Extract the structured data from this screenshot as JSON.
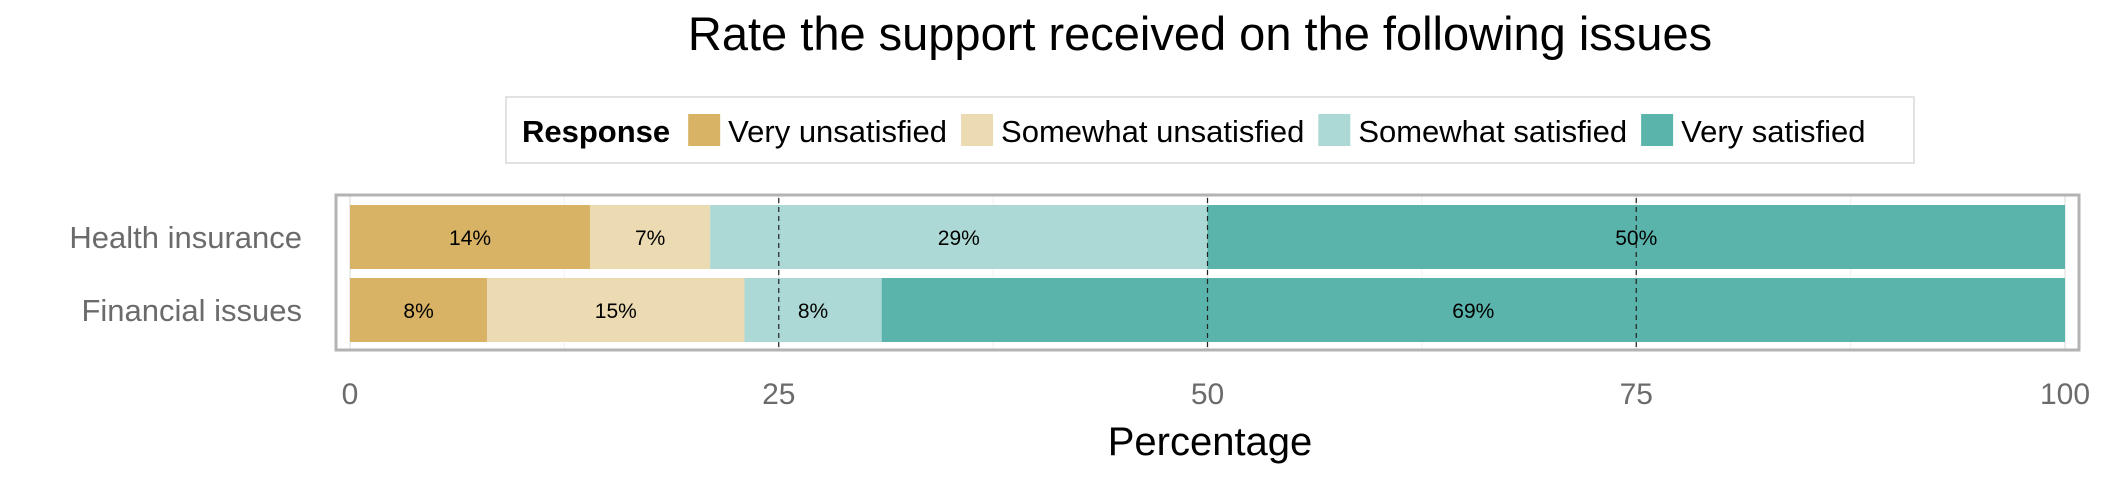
{
  "chart_data": {
    "type": "bar",
    "orientation": "horizontal",
    "stacked": true,
    "title": "Rate the support received on the following issues",
    "xlabel": "Percentage",
    "ylabel": "",
    "xlim": [
      0,
      100
    ],
    "xticks": [
      0,
      25,
      50,
      75,
      100
    ],
    "grid": true,
    "legend": {
      "title": "Response",
      "placement": "top"
    },
    "categories": [
      "Health insurance",
      "Financial issues"
    ],
    "series": [
      {
        "name": "Very unsatisfied",
        "color": "#d8b365",
        "values": [
          14,
          8
        ],
        "labels": [
          "14%",
          "8%"
        ]
      },
      {
        "name": "Somewhat unsatisfied",
        "color": "#ebdab2",
        "values": [
          7,
          15
        ],
        "labels": [
          "7%",
          "15%"
        ]
      },
      {
        "name": "Somewhat satisfied",
        "color": "#acd9d5",
        "values": [
          29,
          8
        ],
        "labels": [
          "29%",
          "8%"
        ]
      },
      {
        "name": "Very satisfied",
        "color": "#5ab4ac",
        "values": [
          50,
          69
        ],
        "labels": [
          "50%",
          "69%"
        ]
      }
    ]
  }
}
